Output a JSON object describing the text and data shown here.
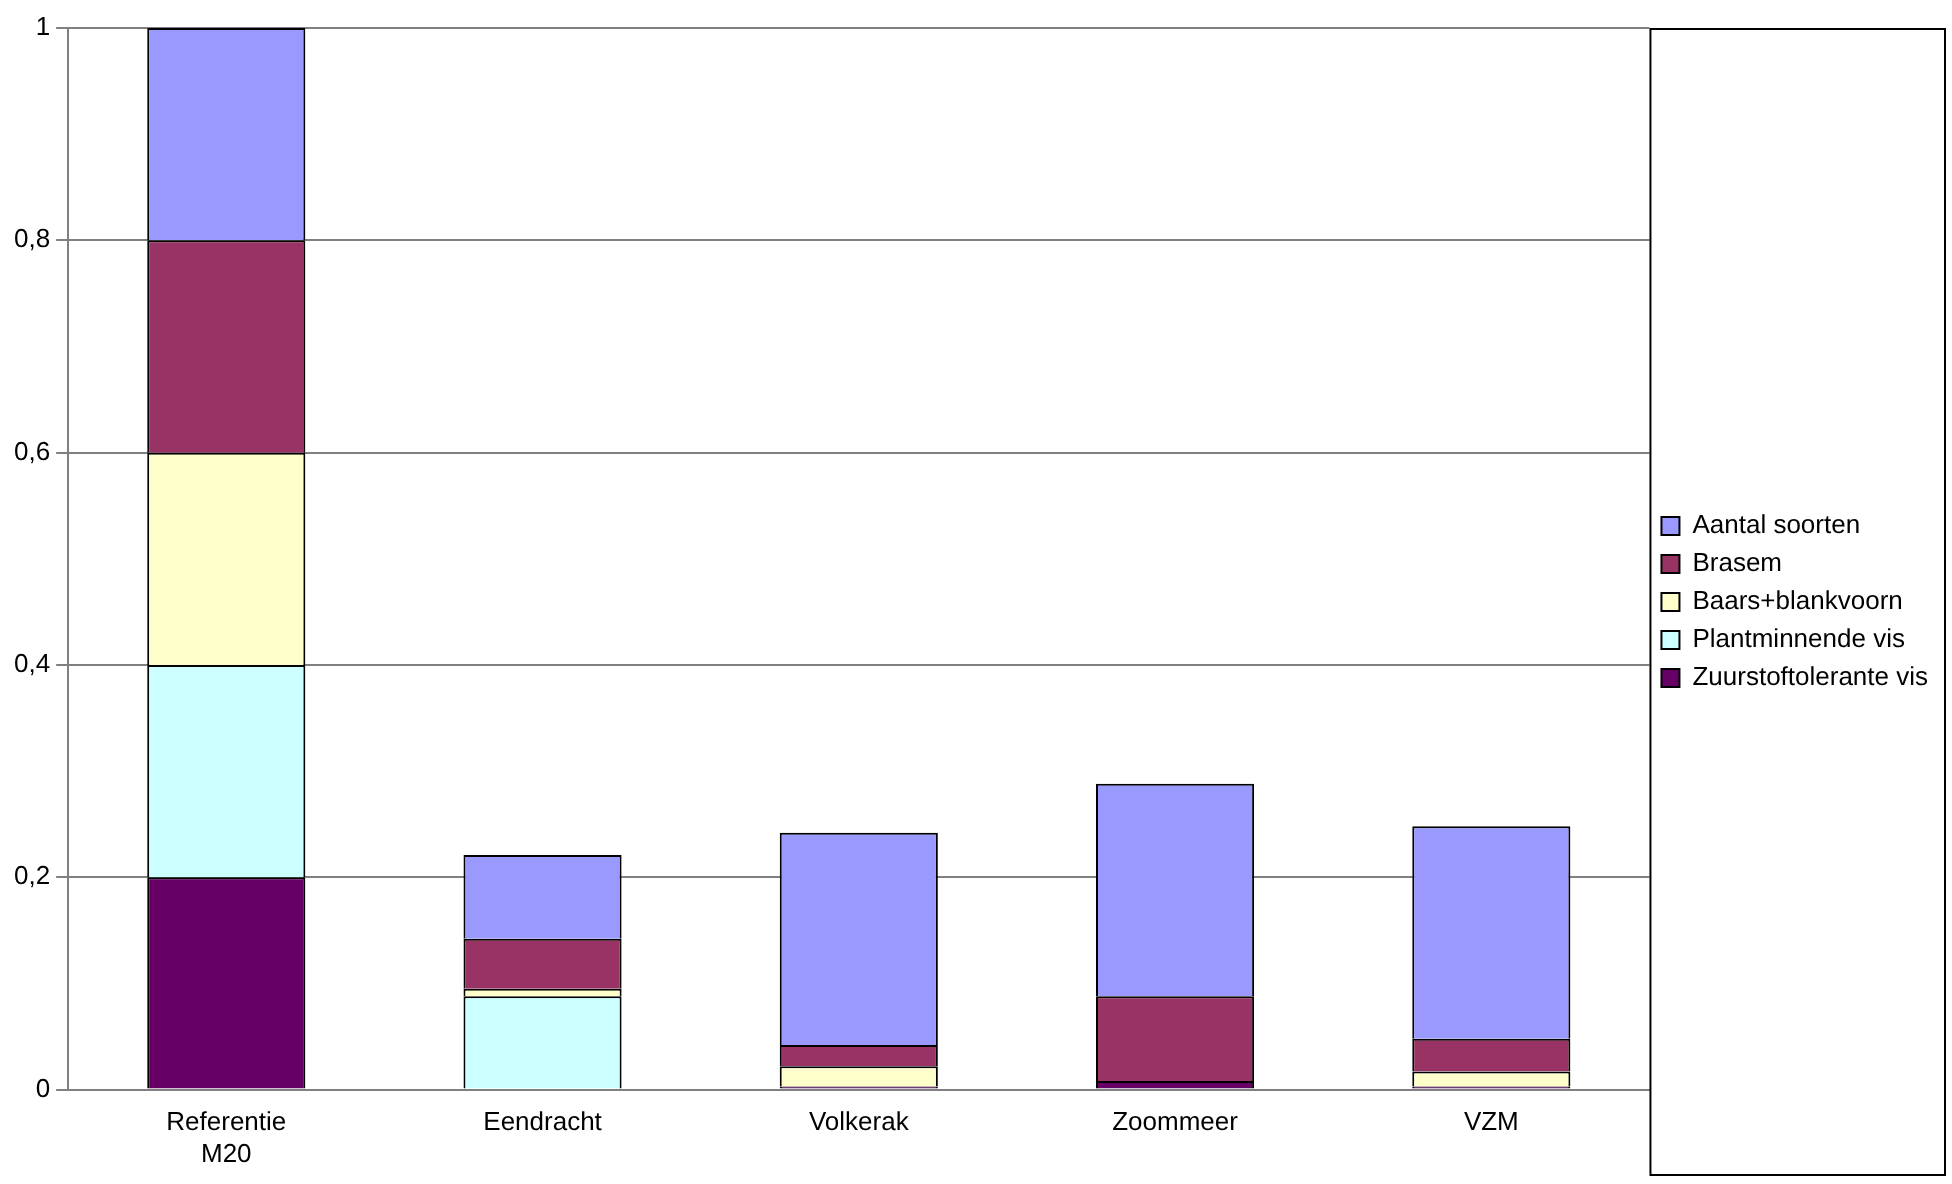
{
  "chart_data": {
    "type": "bar",
    "stacked": true,
    "categories": [
      "Referentie M20",
      "Eendracht",
      "Volkerak",
      "Zoommeer",
      "VZM"
    ],
    "series": [
      {
        "name": "Zuurstoftolerante vis",
        "color": "#660066",
        "values": [
          0.2,
          0,
          0.003,
          0.008,
          0.003
        ]
      },
      {
        "name": "Plantminnende vis",
        "color": "#ccffff",
        "values": [
          0.2,
          0.088,
          0,
          0,
          0
        ]
      },
      {
        "name": "Baars+blankvoorn",
        "color": "#ffffcc",
        "values": [
          0.2,
          0.007,
          0.019,
          0,
          0.014
        ]
      },
      {
        "name": "Brasem",
        "color": "#993366",
        "values": [
          0.2,
          0.047,
          0.02,
          0.08,
          0.031
        ]
      },
      {
        "name": "Aantal soorten",
        "color": "#9999ff",
        "values": [
          0.2,
          0.079,
          0.2,
          0.2,
          0.2
        ]
      }
    ],
    "ylim": [
      0,
      1
    ],
    "yticks": [
      0,
      {
        "value": 0.2,
        "label": "0,2"
      },
      {
        "value": 0.4,
        "label": "0,4"
      },
      {
        "value": 0.6,
        "label": "0,6"
      },
      {
        "value": 0.8,
        "label": "0,8"
      },
      1
    ],
    "grid": "y",
    "legend": "right"
  }
}
